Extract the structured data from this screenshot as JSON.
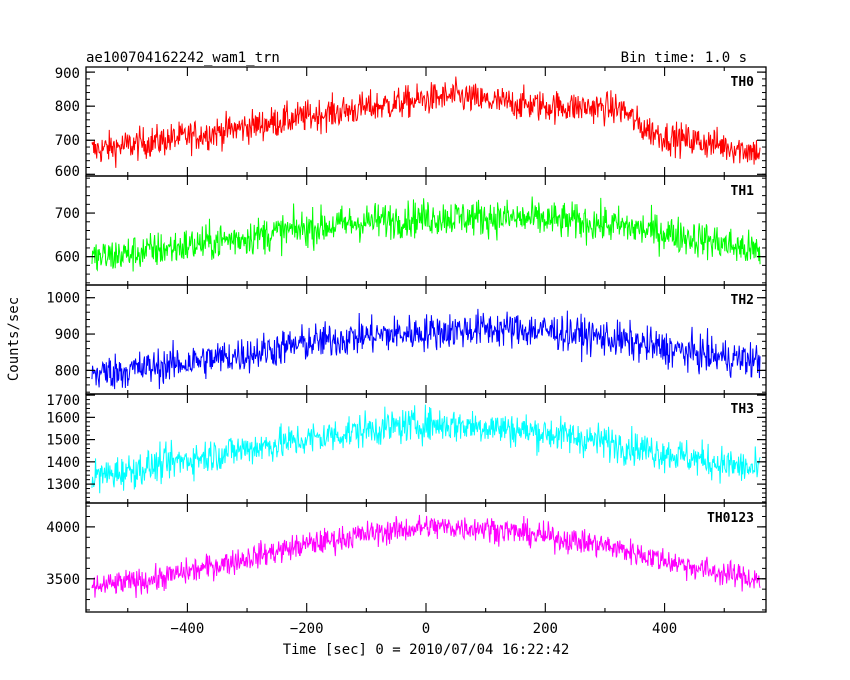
{
  "chart_data": {
    "type": "line",
    "title": "ae100704162242_wam1_trn",
    "subtitle": "Bin time: 1.0 s",
    "xlabel": "Time [sec] 0 = 2010/07/04 16:22:42",
    "ylabel": "Counts/sec",
    "xlim": [
      -570,
      570
    ],
    "x_ticks": [
      -400,
      -200,
      0,
      200,
      400
    ],
    "x_range": [
      -560,
      560
    ],
    "bin_time_s": 1.0,
    "grid": false,
    "panels": [
      {
        "name": "TH0",
        "color": "#ff0000",
        "ylim": [
          595,
          915
        ],
        "y_ticks": [
          600,
          700,
          800,
          900
        ],
        "profile": [
          [
            -560,
            670
          ],
          [
            -400,
            710
          ],
          [
            -280,
            745
          ],
          [
            -200,
            770
          ],
          [
            -100,
            795
          ],
          [
            0,
            820
          ],
          [
            50,
            830
          ],
          [
            100,
            815
          ],
          [
            200,
            800
          ],
          [
            300,
            795
          ],
          [
            330,
            790
          ],
          [
            360,
            740
          ],
          [
            400,
            710
          ],
          [
            480,
            690
          ],
          [
            560,
            665
          ]
        ],
        "noise_amplitude": 42
      },
      {
        "name": "TH1",
        "color": "#00ff00",
        "ylim": [
          535,
          785
        ],
        "y_ticks": [
          600,
          700
        ],
        "profile": [
          [
            -560,
            595
          ],
          [
            -400,
            625
          ],
          [
            -300,
            645
          ],
          [
            -200,
            665
          ],
          [
            -100,
            680
          ],
          [
            0,
            690
          ],
          [
            100,
            690
          ],
          [
            200,
            685
          ],
          [
            300,
            675
          ],
          [
            400,
            655
          ],
          [
            480,
            635
          ],
          [
            560,
            610
          ]
        ],
        "noise_amplitude": 38
      },
      {
        "name": "TH2",
        "color": "#0000ff",
        "ylim": [
          735,
          1035
        ],
        "y_ticks": [
          800,
          900,
          1000
        ],
        "profile": [
          [
            -560,
            790
          ],
          [
            -450,
            810
          ],
          [
            -300,
            845
          ],
          [
            -200,
            875
          ],
          [
            -100,
            895
          ],
          [
            0,
            905
          ],
          [
            100,
            915
          ],
          [
            200,
            910
          ],
          [
            300,
            890
          ],
          [
            400,
            860
          ],
          [
            480,
            840
          ],
          [
            560,
            825
          ]
        ],
        "noise_amplitude": 45
      },
      {
        "name": "TH3",
        "color": "#00ffff",
        "ylim": [
          1215,
          1705
        ],
        "y_ticks": [
          1300,
          1400,
          1500,
          1600,
          1700
        ],
        "profile": [
          [
            -560,
            1330
          ],
          [
            -400,
            1410
          ],
          [
            -300,
            1460
          ],
          [
            -200,
            1500
          ],
          [
            -100,
            1545
          ],
          [
            0,
            1570
          ],
          [
            100,
            1560
          ],
          [
            200,
            1530
          ],
          [
            300,
            1490
          ],
          [
            400,
            1440
          ],
          [
            480,
            1400
          ],
          [
            560,
            1360
          ]
        ],
        "noise_amplitude": 70
      },
      {
        "name": "TH0123",
        "color": "#ff00ff",
        "ylim": [
          3180,
          4230
        ],
        "y_ticks": [
          3500,
          4000
        ],
        "profile": [
          [
            -560,
            3420
          ],
          [
            -450,
            3500
          ],
          [
            -300,
            3700
          ],
          [
            -200,
            3830
          ],
          [
            -100,
            3930
          ],
          [
            0,
            4000
          ],
          [
            100,
            3990
          ],
          [
            200,
            3910
          ],
          [
            300,
            3820
          ],
          [
            400,
            3680
          ],
          [
            480,
            3570
          ],
          [
            560,
            3490
          ]
        ],
        "noise_amplitude": 110
      }
    ]
  }
}
